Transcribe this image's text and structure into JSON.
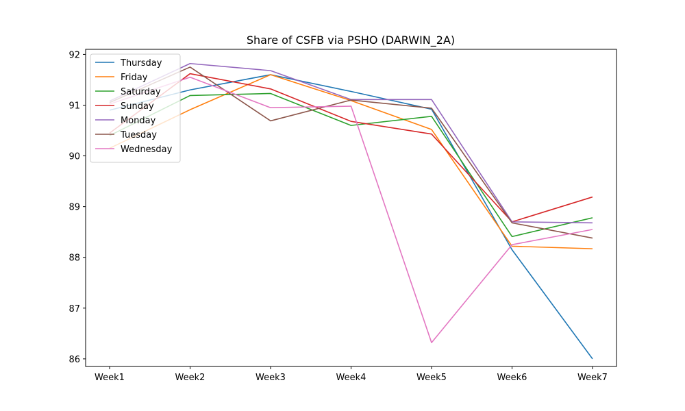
{
  "chart_data": {
    "type": "line",
    "title": "Share of CSFB via PSHO (DARWIN_2A)",
    "xlabel": "",
    "ylabel": "",
    "categories": [
      "Week1",
      "Week2",
      "Week3",
      "Week4",
      "Week5",
      "Week6",
      "Week7"
    ],
    "ylim": [
      85.85,
      92.1
    ],
    "yticks": [
      86,
      87,
      88,
      89,
      90,
      91,
      92
    ],
    "grid": false,
    "legend_position": "top-left",
    "series": [
      {
        "name": "Thursday",
        "color": "#1f77b4",
        "values": [
          90.9,
          91.3,
          91.6,
          91.27,
          90.92,
          88.15,
          86.0
        ]
      },
      {
        "name": "Friday",
        "color": "#ff7f0e",
        "values": [
          90.15,
          90.91,
          91.6,
          91.09,
          90.52,
          88.22,
          88.17
        ]
      },
      {
        "name": "Saturday",
        "color": "#2ca02c",
        "values": [
          90.4,
          91.19,
          91.23,
          90.6,
          90.78,
          88.41,
          88.78
        ]
      },
      {
        "name": "Sunday",
        "color": "#d62728",
        "values": [
          90.45,
          91.62,
          91.32,
          90.68,
          90.43,
          88.7,
          89.19
        ]
      },
      {
        "name": "Monday",
        "color": "#9467bd",
        "values": [
          91.08,
          91.82,
          91.68,
          91.11,
          91.11,
          88.7,
          88.68
        ]
      },
      {
        "name": "Tuesday",
        "color": "#8c564b",
        "values": [
          91.05,
          91.75,
          90.69,
          91.1,
          90.94,
          88.68,
          88.38
        ]
      },
      {
        "name": "Wednesday",
        "color": "#e377c2",
        "values": [
          91.02,
          91.55,
          90.95,
          90.98,
          86.32,
          88.25,
          88.55
        ]
      }
    ]
  }
}
